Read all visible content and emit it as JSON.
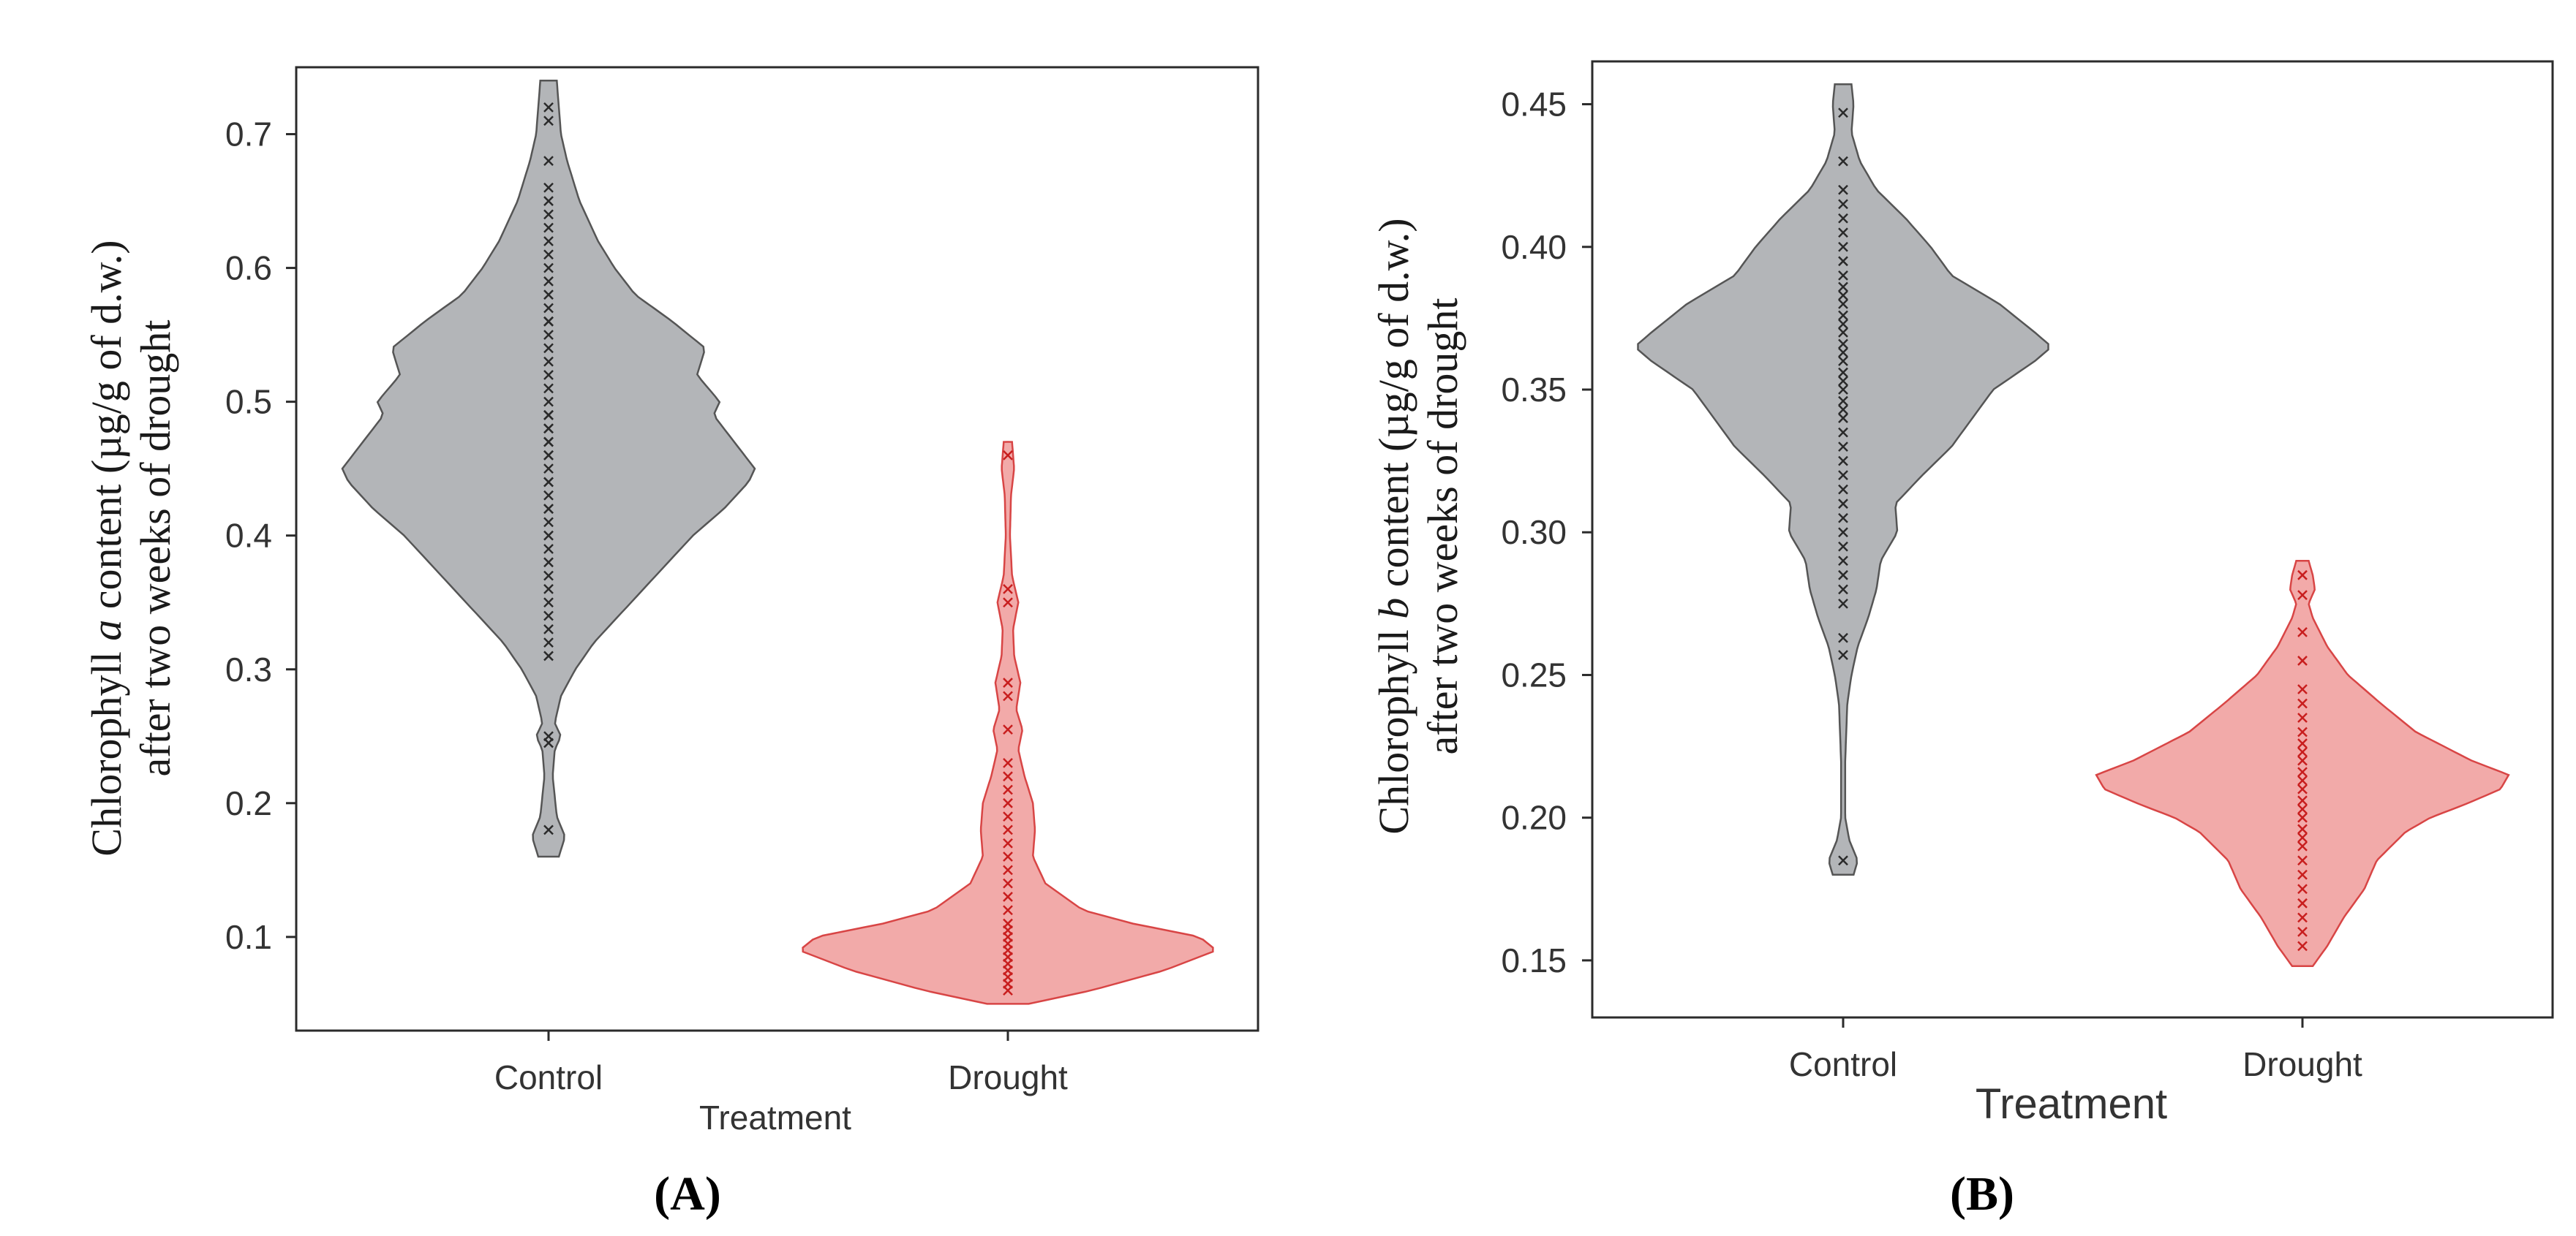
{
  "colors": {
    "control": "#b3b5b8",
    "control_edge": "#555555",
    "drought": "#f2aaa9",
    "drought_edge": "#d84545",
    "control_point": "#2a2a2a",
    "drought_point": "#c81e1e"
  },
  "chart_data": [
    {
      "type": "violin",
      "panel_label": "A",
      "categories": [
        "Control",
        "Drought"
      ],
      "xlabel": "Treatment",
      "ylabel_prefix": "Chlorophyll ",
      "ylabel_italic": "a",
      "ylabel_suffix": " content (µg/g of d.w.)",
      "ylabel_line2": "after two weeks of drought",
      "ylim": [
        0.03,
        0.75
      ],
      "yticks": [
        0.1,
        0.2,
        0.3,
        0.4,
        0.5,
        0.6,
        0.7
      ],
      "ytick_labels": [
        "0.1",
        "0.2",
        "0.3",
        "0.4",
        "0.5",
        "0.6",
        "0.7"
      ],
      "series": [
        {
          "name": "Control",
          "range": [
            0.16,
            0.74
          ],
          "density": [
            [
              0.16,
              0.05
            ],
            [
              0.175,
              0.08
            ],
            [
              0.19,
              0.04
            ],
            [
              0.22,
              0.02
            ],
            [
              0.24,
              0.03
            ],
            [
              0.25,
              0.06
            ],
            [
              0.26,
              0.03
            ],
            [
              0.28,
              0.06
            ],
            [
              0.3,
              0.13
            ],
            [
              0.32,
              0.22
            ],
            [
              0.35,
              0.4
            ],
            [
              0.38,
              0.58
            ],
            [
              0.4,
              0.7
            ],
            [
              0.42,
              0.85
            ],
            [
              0.44,
              0.97
            ],
            [
              0.45,
              1.0
            ],
            [
              0.47,
              0.9
            ],
            [
              0.49,
              0.8
            ],
            [
              0.5,
              0.83
            ],
            [
              0.52,
              0.72
            ],
            [
              0.54,
              0.76
            ],
            [
              0.56,
              0.6
            ],
            [
              0.58,
              0.42
            ],
            [
              0.6,
              0.32
            ],
            [
              0.62,
              0.24
            ],
            [
              0.65,
              0.15
            ],
            [
              0.68,
              0.09
            ],
            [
              0.7,
              0.06
            ],
            [
              0.72,
              0.05
            ],
            [
              0.74,
              0.04
            ]
          ],
          "points": [
            0.18,
            0.245,
            0.25,
            0.31,
            0.32,
            0.33,
            0.34,
            0.35,
            0.36,
            0.37,
            0.38,
            0.39,
            0.4,
            0.41,
            0.42,
            0.42,
            0.43,
            0.44,
            0.44,
            0.45,
            0.46,
            0.46,
            0.47,
            0.47,
            0.48,
            0.48,
            0.49,
            0.49,
            0.5,
            0.51,
            0.52,
            0.53,
            0.54,
            0.55,
            0.56,
            0.56,
            0.57,
            0.58,
            0.59,
            0.6,
            0.61,
            0.62,
            0.63,
            0.64,
            0.65,
            0.66,
            0.68,
            0.71,
            0.72
          ]
        },
        {
          "name": "Drought",
          "range": [
            0.05,
            0.47
          ],
          "density": [
            [
              0.05,
              0.1
            ],
            [
              0.06,
              0.4
            ],
            [
              0.075,
              0.75
            ],
            [
              0.09,
              1.0
            ],
            [
              0.1,
              0.92
            ],
            [
              0.11,
              0.6
            ],
            [
              0.12,
              0.36
            ],
            [
              0.14,
              0.18
            ],
            [
              0.16,
              0.12
            ],
            [
              0.18,
              0.13
            ],
            [
              0.2,
              0.12
            ],
            [
              0.22,
              0.08
            ],
            [
              0.24,
              0.05
            ],
            [
              0.255,
              0.07
            ],
            [
              0.27,
              0.04
            ],
            [
              0.29,
              0.06
            ],
            [
              0.31,
              0.03
            ],
            [
              0.33,
              0.025
            ],
            [
              0.35,
              0.05
            ],
            [
              0.37,
              0.02
            ],
            [
              0.4,
              0.01
            ],
            [
              0.43,
              0.015
            ],
            [
              0.45,
              0.03
            ],
            [
              0.47,
              0.02
            ]
          ],
          "points": [
            0.06,
            0.065,
            0.07,
            0.075,
            0.08,
            0.085,
            0.09,
            0.095,
            0.1,
            0.105,
            0.11,
            0.12,
            0.13,
            0.14,
            0.15,
            0.16,
            0.17,
            0.18,
            0.19,
            0.2,
            0.21,
            0.22,
            0.23,
            0.255,
            0.28,
            0.29,
            0.35,
            0.36,
            0.46
          ]
        }
      ]
    },
    {
      "type": "violin",
      "panel_label": "B",
      "categories": [
        "Control",
        "Drought"
      ],
      "xlabel": "Treatment",
      "ylabel_prefix": "Chlorophyll ",
      "ylabel_italic": "b",
      "ylabel_suffix": " content (µg/g of d.w.)",
      "ylabel_line2": "after two weeks of drought",
      "ylim": [
        0.13,
        0.465
      ],
      "yticks": [
        0.15,
        0.2,
        0.25,
        0.3,
        0.35,
        0.4,
        0.45
      ],
      "ytick_labels": [
        "0.15",
        "0.20",
        "0.25",
        "0.30",
        "0.35",
        "0.40",
        "0.45"
      ],
      "series": [
        {
          "name": "Control",
          "range": [
            0.18,
            0.457
          ],
          "density": [
            [
              0.18,
              0.05
            ],
            [
              0.185,
              0.07
            ],
            [
              0.192,
              0.03
            ],
            [
              0.2,
              0.01
            ],
            [
              0.22,
              0.01
            ],
            [
              0.24,
              0.02
            ],
            [
              0.25,
              0.04
            ],
            [
              0.26,
              0.07
            ],
            [
              0.27,
              0.12
            ],
            [
              0.28,
              0.16
            ],
            [
              0.29,
              0.18
            ],
            [
              0.3,
              0.26
            ],
            [
              0.31,
              0.25
            ],
            [
              0.32,
              0.38
            ],
            [
              0.33,
              0.52
            ],
            [
              0.34,
              0.62
            ],
            [
              0.35,
              0.72
            ],
            [
              0.36,
              0.92
            ],
            [
              0.365,
              1.0
            ],
            [
              0.37,
              0.92
            ],
            [
              0.38,
              0.75
            ],
            [
              0.39,
              0.52
            ],
            [
              0.4,
              0.42
            ],
            [
              0.41,
              0.3
            ],
            [
              0.42,
              0.16
            ],
            [
              0.43,
              0.08
            ],
            [
              0.44,
              0.04
            ],
            [
              0.45,
              0.05
            ],
            [
              0.457,
              0.04
            ]
          ],
          "points": [
            0.185,
            0.257,
            0.263,
            0.275,
            0.28,
            0.285,
            0.29,
            0.295,
            0.3,
            0.305,
            0.31,
            0.315,
            0.32,
            0.325,
            0.33,
            0.335,
            0.34,
            0.343,
            0.346,
            0.35,
            0.353,
            0.356,
            0.36,
            0.363,
            0.366,
            0.37,
            0.373,
            0.376,
            0.38,
            0.383,
            0.386,
            0.39,
            0.395,
            0.4,
            0.405,
            0.41,
            0.415,
            0.42,
            0.43,
            0.447
          ]
        },
        {
          "name": "Drought",
          "range": [
            0.148,
            0.29
          ],
          "density": [
            [
              0.148,
              0.05
            ],
            [
              0.155,
              0.12
            ],
            [
              0.165,
              0.2
            ],
            [
              0.175,
              0.3
            ],
            [
              0.185,
              0.36
            ],
            [
              0.195,
              0.5
            ],
            [
              0.2,
              0.62
            ],
            [
              0.205,
              0.8
            ],
            [
              0.21,
              0.96
            ],
            [
              0.215,
              1.0
            ],
            [
              0.22,
              0.82
            ],
            [
              0.23,
              0.55
            ],
            [
              0.24,
              0.38
            ],
            [
              0.25,
              0.22
            ],
            [
              0.26,
              0.12
            ],
            [
              0.27,
              0.05
            ],
            [
              0.275,
              0.03
            ],
            [
              0.28,
              0.06
            ],
            [
              0.285,
              0.05
            ],
            [
              0.29,
              0.03
            ]
          ],
          "points": [
            0.155,
            0.16,
            0.165,
            0.17,
            0.175,
            0.18,
            0.185,
            0.19,
            0.193,
            0.196,
            0.2,
            0.203,
            0.206,
            0.21,
            0.213,
            0.216,
            0.22,
            0.223,
            0.226,
            0.23,
            0.235,
            0.24,
            0.245,
            0.255,
            0.265,
            0.278,
            0.285
          ]
        }
      ]
    }
  ]
}
